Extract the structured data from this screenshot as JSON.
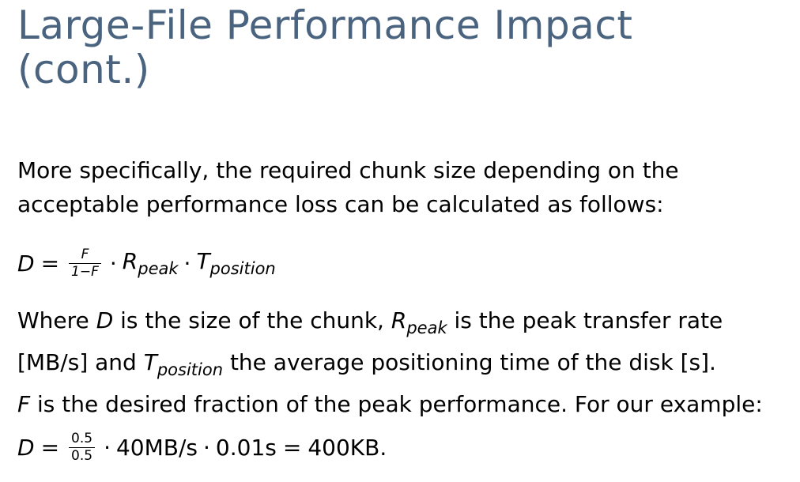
{
  "title": {
    "line1": "Large-File Performance Impact",
    "line2": "(cont.)"
  },
  "para1": {
    "line1": "More specifically, the required chunk size depending on the",
    "line2": "acceptable performance loss can be calculated as follows:"
  },
  "formula": {
    "lhs": "D",
    "eq": "=",
    "frac_num": "F",
    "frac_den": "1−F",
    "dot": "·",
    "r_var": "R",
    "r_sub": "peak",
    "t_var": "T",
    "t_sub": "position"
  },
  "para2": {
    "where": "Where",
    "d_var": "D",
    "text1": "is the size of the chunk,",
    "r_var": "R",
    "r_sub": "peak",
    "text2": "is the peak transfer rate",
    "text3": "[MB/s] and",
    "t_var": "T",
    "t_sub": "position",
    "text4": "the average positioning time of the disk [s].",
    "f_var": "F",
    "text5": "is the desired fraction of the peak performance. For our example:"
  },
  "example": {
    "lhs": "D",
    "eq": "=",
    "frac_num": "0.5",
    "frac_den": "0.5",
    "dot": "·",
    "rate": "40MB/s",
    "time": "0.01s",
    "eq2": "=",
    "result": "400KB."
  }
}
